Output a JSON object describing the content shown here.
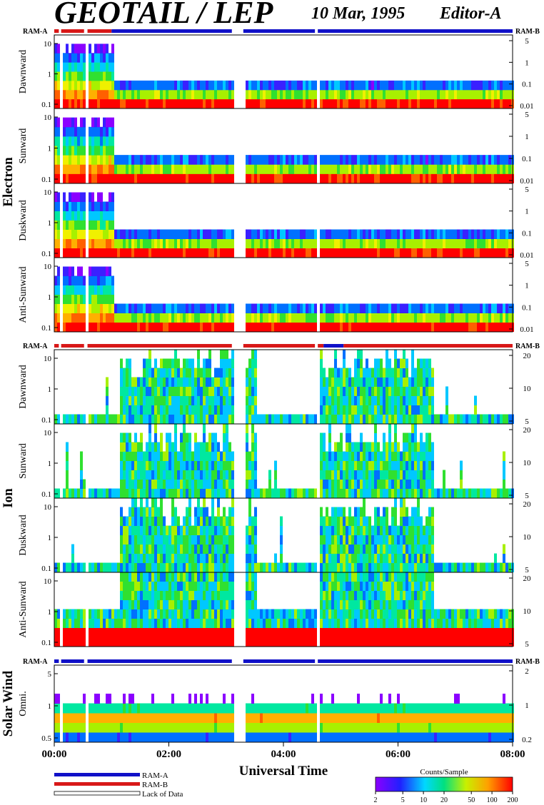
{
  "header": {
    "instrument": "GEOTAIL / LEP",
    "date": "10 Mar, 1995",
    "editor": "Editor-A"
  },
  "ram_labels": {
    "ram_a": "RAM-A",
    "ram_b": "RAM-B"
  },
  "colors": {
    "ram_a": "#1010c8",
    "ram_b": "#d81818",
    "lack": "#ffffff",
    "spectrum_low": "#8b00ff",
    "spectrum_high": "#ff0000"
  },
  "chart_data": {
    "type": "heatmap",
    "xlabel": "Universal Time",
    "x_ticks": [
      "00:00",
      "02:00",
      "04:00",
      "06:00",
      "08:00"
    ],
    "x_range_hours": [
      0,
      8
    ],
    "groups": [
      {
        "name": "Electron",
        "panels": [
          {
            "name": "Dawnward",
            "left_ticks": [
              "10",
              "1",
              "0.1"
            ],
            "right_ticks": [
              "5",
              "1",
              "0.1",
              "0.01"
            ]
          },
          {
            "name": "Sunward",
            "left_ticks": [
              "10",
              "1",
              "0.1"
            ],
            "right_ticks": [
              "5",
              "1",
              "0.1",
              "0.01"
            ]
          },
          {
            "name": "Duskward",
            "left_ticks": [
              "10",
              "1",
              "0.1"
            ],
            "right_ticks": [
              "5",
              "1",
              "0.1",
              "0.01"
            ]
          },
          {
            "name": "Anti-Sunward",
            "left_ticks": [
              "10",
              "1",
              "0.1"
            ],
            "right_ticks": [
              "5",
              "1",
              "0.1",
              "0.01"
            ]
          }
        ]
      },
      {
        "name": "Ion",
        "panels": [
          {
            "name": "Dawnward",
            "left_ticks": [
              "10",
              "1",
              "0.1"
            ],
            "right_ticks": [
              "20",
              "10",
              "5"
            ]
          },
          {
            "name": "Sunward",
            "left_ticks": [
              "10",
              "1",
              "0.1"
            ],
            "right_ticks": [
              "20",
              "10",
              "5"
            ]
          },
          {
            "name": "Duskward",
            "left_ticks": [
              "10",
              "1",
              "0.1"
            ],
            "right_ticks": [
              "20",
              "10",
              "5"
            ]
          },
          {
            "name": "Anti-Sunward",
            "left_ticks": [
              "10",
              "1",
              "0.1"
            ],
            "right_ticks": [
              "20",
              "10",
              "5"
            ]
          }
        ]
      },
      {
        "name": "Solar Wind",
        "panels": [
          {
            "name": "Omni.",
            "left_ticks": [
              "5",
              "1",
              "0.5"
            ],
            "right_ticks": [
              "2",
              "1",
              "0.2"
            ]
          }
        ]
      }
    ],
    "colorbar": {
      "title": "Counts/Sample",
      "ticks": [
        "2",
        "5",
        "10",
        "20",
        "50",
        "100",
        "200"
      ],
      "range": [
        2,
        200
      ],
      "scale": "log"
    },
    "legend": [
      {
        "label": "RAM-A",
        "color": "#1010c8"
      },
      {
        "label": "RAM-B",
        "color": "#d81818"
      },
      {
        "label": "Lack of Data",
        "color": "#ffffff"
      }
    ],
    "data_gaps_hours": [
      [
        0.08,
        0.12
      ],
      [
        0.52,
        0.58
      ],
      [
        3.1,
        3.3
      ],
      [
        4.55,
        4.6
      ]
    ],
    "ram_bars": {
      "electron": [
        {
          "from": 0,
          "to": 1.0,
          "mode": "RAM-B"
        },
        {
          "from": 1.0,
          "to": 8,
          "mode": "RAM-A"
        }
      ],
      "ion": [
        {
          "from": 0,
          "to": 4.7,
          "mode": "RAM-B"
        },
        {
          "from": 4.7,
          "to": 5.05,
          "mode": "RAM-A"
        },
        {
          "from": 5.05,
          "to": 8,
          "mode": "RAM-B"
        }
      ],
      "solar_wind": [
        {
          "from": 0,
          "to": 8,
          "mode": "RAM-A"
        }
      ]
    }
  }
}
